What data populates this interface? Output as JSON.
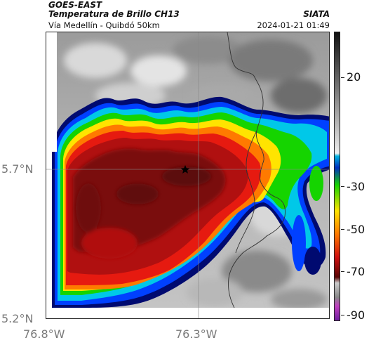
{
  "header": {
    "satellite": "GOES-EAST",
    "product": "Temperatura de Brillo CH13",
    "location": "Vía Medellín - Quibdó 50km",
    "organization": "SIATA",
    "timestamp": "2024-01-21 01:49"
  },
  "axes": {
    "lat_ticks": [
      "5.7°N",
      "5.2°N"
    ],
    "lon_ticks": [
      "76.8°W",
      "76.3°W"
    ]
  },
  "colorbar": {
    "ticks": [
      "20",
      "-30",
      "-50",
      "-70",
      "-90"
    ]
  },
  "marker": {
    "icon": "star-icon",
    "color": "#000000"
  },
  "palette": {
    "warm_gray": "#9a9a9a",
    "cold_dark_red": "#7a0d0d",
    "red": "#e61a10",
    "orange": "#ff7a00",
    "yellow": "#ffe400",
    "green": "#15d400",
    "cyan": "#00c8e8",
    "blue": "#0040ff",
    "navy": "#000a70"
  }
}
